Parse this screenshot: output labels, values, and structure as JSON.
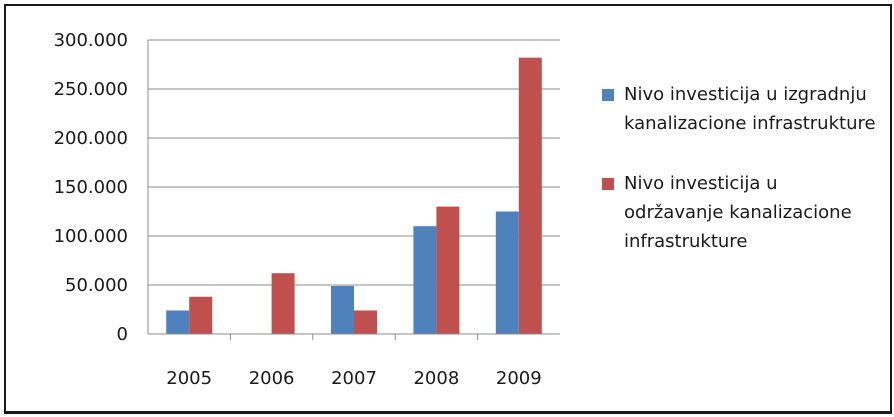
{
  "chart_data": {
    "type": "bar",
    "categories": [
      "2005",
      "2006",
      "2007",
      "2008",
      "2009"
    ],
    "series": [
      {
        "name": "Nivo investicija u izgradnju kanalizacione infrastrukture",
        "color": "#4f81bd",
        "values": [
          24000,
          0,
          49000,
          110000,
          125000
        ]
      },
      {
        "name": "Nivo investicija u održavanje kanalizacione infrastrukture",
        "color": "#c0504d",
        "values": [
          38000,
          62000,
          24000,
          130000,
          282000
        ]
      }
    ],
    "ylim": [
      0,
      300000
    ],
    "ytick_labels": [
      "0",
      "50.000",
      "100.000",
      "150.000",
      "200.000",
      "250.000",
      "300.000"
    ],
    "grid": true,
    "legend": "right"
  }
}
